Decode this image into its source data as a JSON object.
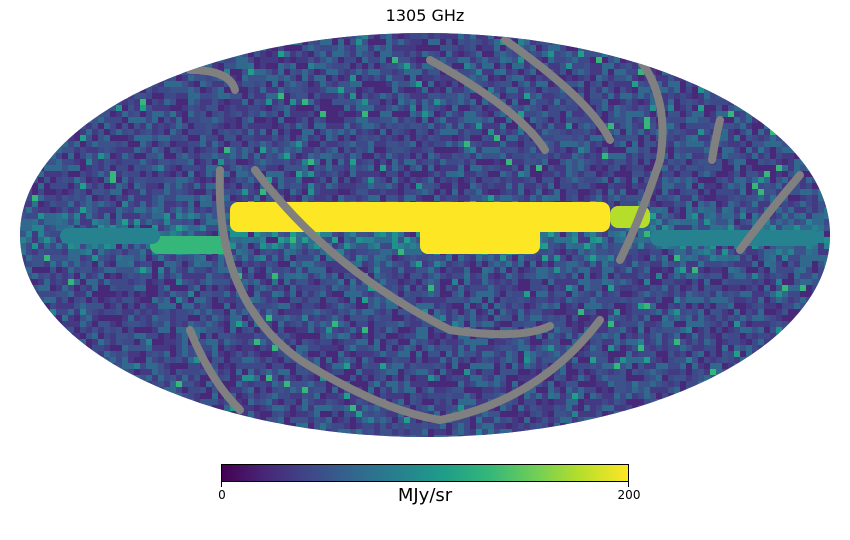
{
  "title": "1305 GHz",
  "map": {
    "projection": "mollweide",
    "colormap": "viridis",
    "masked_color": "#808080",
    "description_layers": [
      "galactic plane emission",
      "gray masked survey stripes",
      "noisy background"
    ]
  },
  "colorbar": {
    "min_label": "0",
    "max_label": "200",
    "unit": "MJy/sr",
    "min": 0,
    "max": 200
  }
}
